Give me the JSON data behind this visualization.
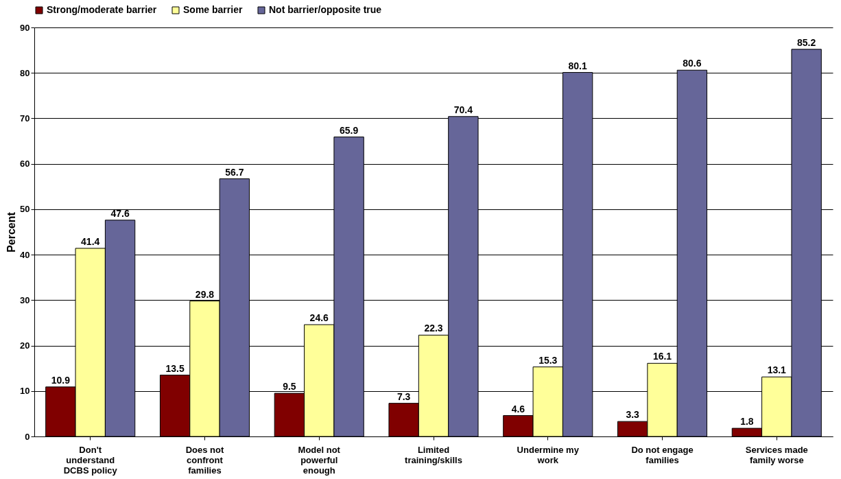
{
  "chart_data": {
    "type": "bar",
    "ylabel": "Percent",
    "categories": [
      "Don't understand DCBS policy",
      "Does not confront families",
      "Model not powerful enough",
      "Limited training/skills",
      "Undermine my work",
      "Do not engage families",
      "Services made family worse"
    ],
    "series": [
      {
        "name": "Strong/moderate barrier",
        "color": "#800000",
        "values": [
          10.9,
          13.5,
          9.5,
          7.3,
          4.6,
          3.3,
          1.8
        ]
      },
      {
        "name": "Some barrier",
        "color": "#ffff99",
        "values": [
          41.4,
          29.8,
          24.6,
          22.3,
          15.3,
          16.1,
          13.1
        ]
      },
      {
        "name": "Not barrier/opposite true",
        "color": "#666699",
        "values": [
          47.6,
          56.7,
          65.9,
          70.4,
          80.1,
          80.6,
          85.2
        ]
      }
    ],
    "ylim": [
      0,
      90
    ],
    "yticks": [
      0,
      10,
      20,
      30,
      40,
      50,
      60,
      70,
      80,
      90
    ],
    "grid": "y",
    "legend": "top",
    "data_labels": true
  }
}
